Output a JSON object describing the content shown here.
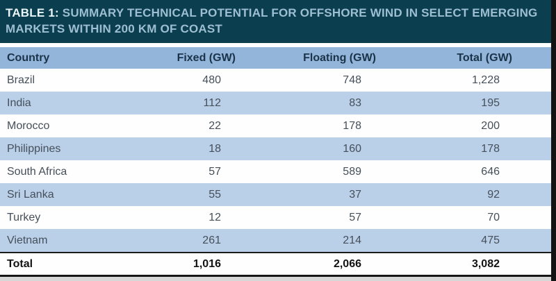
{
  "title": {
    "label": "TABLE 1:",
    "caption_lines": [
      "SUMMARY TECHNICAL POTENTIAL FOR OFFSHORE WIND IN SELECT EMERGING",
      "MARKETS WITHIN 200 KM OF COAST"
    ]
  },
  "table": {
    "columns": [
      "Country",
      "Fixed (GW)",
      "Floating (GW)",
      "Total (GW)"
    ],
    "rows": [
      {
        "country": "Brazil",
        "fixed": "480",
        "floating": "748",
        "total": "1,228"
      },
      {
        "country": "India",
        "fixed": "112",
        "floating": "83",
        "total": "195"
      },
      {
        "country": "Morocco",
        "fixed": "22",
        "floating": "178",
        "total": "200"
      },
      {
        "country": "Philippines",
        "fixed": "18",
        "floating": "160",
        "total": "178"
      },
      {
        "country": "South Africa",
        "fixed": "57",
        "floating": "589",
        "total": "646"
      },
      {
        "country": "Sri Lanka",
        "fixed": "55",
        "floating": "37",
        "total": "92"
      },
      {
        "country": "Turkey",
        "fixed": "12",
        "floating": "57",
        "total": "70"
      },
      {
        "country": "Vietnam",
        "fixed": "261",
        "floating": "214",
        "total": "475"
      }
    ],
    "total_row": {
      "country": "Total",
      "fixed": "1,016",
      "floating": "2,066",
      "total": "3,082"
    }
  },
  "colors": {
    "titlebar_bg": "#0b3e4e",
    "title_label": "#e9f5f8",
    "title_caption": "#9dbed3",
    "header_bg": "#93b5da",
    "header_text": "#1a3349",
    "stripe_row_bg": "#bad0e9",
    "white_row_bg": "#fefefe",
    "cell_text": "#454f59",
    "total_border": "#1c1c1c"
  }
}
